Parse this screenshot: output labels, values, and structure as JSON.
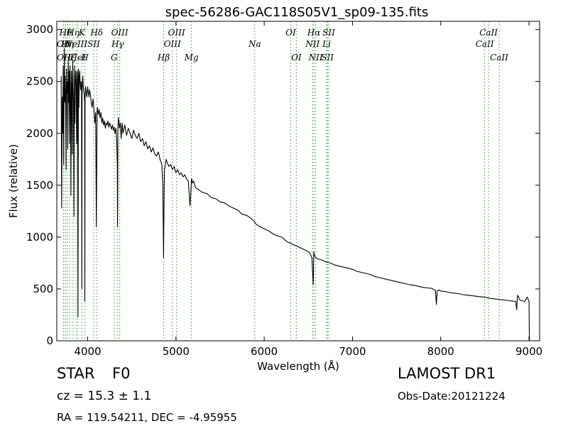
{
  "chart_data": {
    "type": "line",
    "title": "spec-56286-GAC118S05V1_sp09-135.fits",
    "xlabel": "Wavelength (Å)",
    "ylabel": "Flux (relative)",
    "xlim": [
      3650,
      9120
    ],
    "ylim": [
      0,
      3080
    ],
    "xticks": [
      4000,
      5000,
      6000,
      7000,
      8000,
      9000
    ],
    "yticks": [
      0,
      500,
      1000,
      1500,
      2000,
      2500,
      3000
    ],
    "grid": false,
    "line_color": "#000000",
    "marker_color": "#2ca02c",
    "series": [
      {
        "x": [
          3700,
          3705,
          3712,
          3718,
          3722,
          3728,
          3735,
          3740,
          3745,
          3750,
          3755,
          3760,
          3765,
          3770,
          3775,
          3780,
          3785,
          3790,
          3795,
          3800,
          3805,
          3810,
          3815,
          3820,
          3825,
          3830,
          3835,
          3840,
          3845,
          3850,
          3855,
          3860,
          3865,
          3870,
          3875,
          3880,
          3885,
          3890,
          3895,
          3900,
          3905,
          3910,
          3915,
          3920,
          3925,
          3930,
          3934,
          3936,
          3940,
          3945,
          3950,
          3955,
          3960,
          3965,
          3968,
          3970,
          3975,
          3980,
          3985,
          3990,
          3995,
          4000,
          4005,
          4010,
          4015,
          4020,
          4030,
          4040,
          4050,
          4060,
          4070,
          4080,
          4090,
          4095,
          4098,
          4102,
          4106,
          4110,
          4120,
          4130,
          4140,
          4150,
          4160,
          4170,
          4180,
          4190,
          4200,
          4210,
          4220,
          4230,
          4240,
          4250,
          4260,
          4270,
          4280,
          4290,
          4300,
          4310,
          4320,
          4330,
          4335,
          4338,
          4340,
          4342,
          4345,
          4350,
          4360,
          4370,
          4380,
          4390,
          4400,
          4420,
          4440,
          4460,
          4480,
          4500,
          4520,
          4540,
          4560,
          4580,
          4600,
          4620,
          4640,
          4660,
          4680,
          4700,
          4720,
          4740,
          4760,
          4780,
          4800,
          4820,
          4840,
          4850,
          4855,
          4860,
          4862,
          4866,
          4870,
          4880,
          4890,
          4900,
          4920,
          4940,
          4960,
          4980,
          5000,
          5020,
          5040,
          5060,
          5080,
          5100,
          5120,
          5140,
          5160,
          5170,
          5175,
          5180,
          5185,
          5200,
          5220,
          5250,
          5300,
          5350,
          5400,
          5450,
          5500,
          5550,
          5600,
          5650,
          5700,
          5750,
          5800,
          5850,
          5890,
          5900,
          5950,
          6000,
          6050,
          6100,
          6150,
          6200,
          6250,
          6300,
          6350,
          6400,
          6450,
          6500,
          6520,
          6540,
          6555,
          6560,
          6563,
          6566,
          6570,
          6580,
          6600,
          6650,
          6700,
          6750,
          6800,
          6850,
          6900,
          6950,
          7000,
          7050,
          7100,
          7150,
          7200,
          7250,
          7300,
          7350,
          7400,
          7450,
          7500,
          7550,
          7600,
          7650,
          7700,
          7750,
          7800,
          7850,
          7900,
          7920,
          7940,
          7950,
          7960,
          7980,
          8000,
          8050,
          8100,
          8150,
          8200,
          8250,
          8300,
          8350,
          8400,
          8450,
          8500,
          8550,
          8600,
          8650,
          8700,
          8750,
          8800,
          8850,
          8860,
          8870,
          8900,
          8950,
          8980,
          9000,
          9003,
          9005
        ],
        "y": [
          2550,
          1280,
          2350,
          2000,
          2650,
          1700,
          2820,
          2300,
          2550,
          2400,
          1650,
          2620,
          2380,
          2500,
          1850,
          2700,
          2300,
          2600,
          1900,
          2650,
          2350,
          1400,
          2600,
          2480,
          1800,
          2700,
          2450,
          2300,
          1200,
          2650,
          2100,
          2500,
          2600,
          2480,
          1900,
          2600,
          2520,
          230,
          2620,
          2250,
          2550,
          2600,
          2480,
          2420,
          2500,
          2450,
          500,
          2400,
          2480,
          2550,
          2450,
          2400,
          2380,
          2300,
          380,
          2350,
          2450,
          2420,
          2380,
          2350,
          2400,
          2450,
          2400,
          2380,
          2350,
          2420,
          2380,
          2300,
          2250,
          2330,
          2250,
          2100,
          2200,
          1600,
          1100,
          1650,
          2200,
          2250,
          2180,
          2230,
          2150,
          2200,
          2100,
          2150,
          2080,
          2120,
          2050,
          2100,
          2080,
          2120,
          2060,
          2100,
          2070,
          2040,
          2080,
          2030,
          2060,
          2000,
          2050,
          1900,
          1700,
          1100,
          1400,
          2000,
          2100,
          2150,
          2050,
          2100,
          1950,
          2100,
          2000,
          2080,
          1980,
          2050,
          2000,
          1950,
          2030,
          1980,
          1950,
          2000,
          1920,
          1950,
          1880,
          1920,
          1850,
          1880,
          1820,
          1860,
          1800,
          1780,
          1820,
          1750,
          1700,
          1500,
          1200,
          800,
          1100,
          1400,
          1650,
          1700,
          1750,
          1720,
          1680,
          1700,
          1650,
          1680,
          1620,
          1650,
          1600,
          1620,
          1580,
          1600,
          1560,
          1540,
          1300,
          1450,
          1550,
          1560,
          1520,
          1540,
          1480,
          1460,
          1430,
          1420,
          1380,
          1370,
          1340,
          1330,
          1300,
          1280,
          1260,
          1220,
          1210,
          1180,
          1150,
          1130,
          1100,
          1080,
          1060,
          1030,
          1010,
          1000,
          960,
          940,
          920,
          900,
          880,
          860,
          840,
          800,
          540,
          780,
          860,
          840,
          820,
          810,
          790,
          780,
          760,
          750,
          730,
          720,
          710,
          700,
          690,
          670,
          660,
          650,
          640,
          620,
          610,
          600,
          590,
          580,
          570,
          560,
          550,
          540,
          535,
          525,
          515,
          510,
          505,
          495,
          485,
          350,
          480,
          490,
          480,
          475,
          465,
          460,
          455,
          445,
          440,
          435,
          430,
          425,
          420,
          410,
          405,
          400,
          395,
          390,
          385,
          380,
          300,
          440,
          390,
          380,
          420,
          380,
          80,
          0
        ]
      }
    ],
    "line_markers": [
      {
        "x": 3727,
        "label": "OII",
        "row": 2
      },
      {
        "x": 3729,
        "label": "OII",
        "row": 3
      },
      {
        "x": 3750,
        "label": "Hθ",
        "row": 1
      },
      {
        "x": 3771,
        "label": "Hη",
        "row": 2
      },
      {
        "x": 3797,
        "label": "Hζ",
        "row": 3
      },
      {
        "x": 3835,
        "label": "Hη",
        "row": 1
      },
      {
        "x": 3869,
        "label": "NeIII",
        "row": 2
      },
      {
        "x": 3889,
        "label": "HeI",
        "row": 3
      },
      {
        "x": 3934,
        "label": "K",
        "row": 1
      },
      {
        "x": 3968,
        "label": "H",
        "row": 3
      },
      {
        "x": 4102,
        "label": "Hδ",
        "row": 1
      },
      {
        "x": 4068,
        "label": "SII",
        "row": 2
      },
      {
        "x": 4300,
        "label": "G",
        "row": 3
      },
      {
        "x": 4340,
        "label": "Hγ",
        "row": 2
      },
      {
        "x": 4363,
        "label": "OIII",
        "row": 1
      },
      {
        "x": 4861,
        "label": "Hβ",
        "row": 3
      },
      {
        "x": 4959,
        "label": "OIII",
        "row": 2
      },
      {
        "x": 5007,
        "label": "OIII",
        "row": 1
      },
      {
        "x": 5175,
        "label": "Mg",
        "row": 3
      },
      {
        "x": 5893,
        "label": "Na",
        "row": 2
      },
      {
        "x": 6300,
        "label": "OI",
        "row": 1
      },
      {
        "x": 6364,
        "label": "OI",
        "row": 3
      },
      {
        "x": 6548,
        "label": "NII",
        "row": 2
      },
      {
        "x": 6563,
        "label": "Hα",
        "row": 1
      },
      {
        "x": 6583,
        "label": "NII",
        "row": 3
      },
      {
        "x": 6707,
        "label": "Li",
        "row": 2
      },
      {
        "x": 6716,
        "label": "SII",
        "row": 3
      },
      {
        "x": 6731,
        "label": "SII",
        "row": 1
      },
      {
        "x": 8498,
        "label": "CaII",
        "row": 2
      },
      {
        "x": 8542,
        "label": "CaII",
        "row": 1
      },
      {
        "x": 8662,
        "label": "CaII",
        "row": 3
      }
    ]
  },
  "info": {
    "object_class": "STAR",
    "subclass": "F0",
    "survey": "LAMOST DR1",
    "redshift": "cz = 15.3 ± 1.1",
    "obs_date": "Obs-Date:20121224",
    "coords": "RA = 119.54211, DEC = -4.95955"
  }
}
